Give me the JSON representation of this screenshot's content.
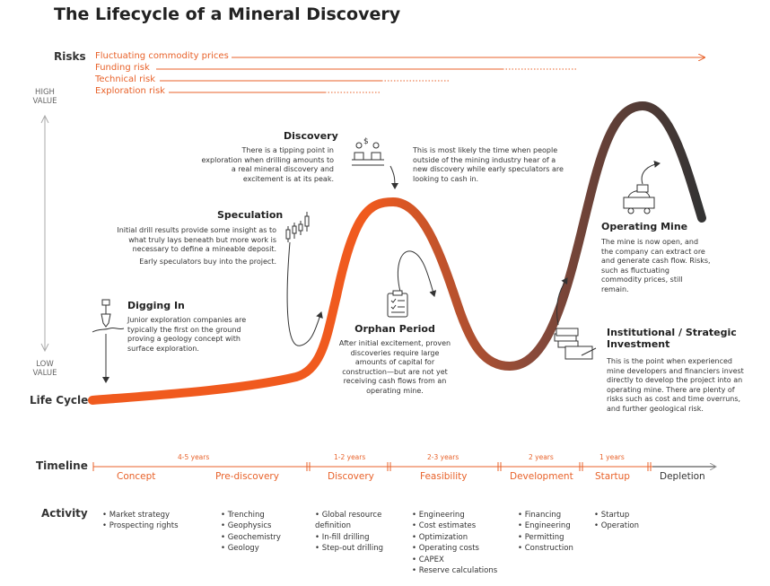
{
  "title": "The Lifecycle of a Mineral Discovery",
  "risks": {
    "heading": "Risks",
    "items": [
      {
        "label": "Fluctuating commodity prices"
      },
      {
        "label": "Funding risk"
      },
      {
        "label": "Technical risk"
      },
      {
        "label": "Exploration risk"
      }
    ]
  },
  "value_axis": {
    "high": "HIGH\nVALUE",
    "low": "LOW\nVALUE"
  },
  "lifecycle_label": "Life Cycle",
  "stages": {
    "discovery": {
      "heading": "Discovery",
      "text_left": "There is a tipping point in exploration when drilling amounts to a real mineral discovery and excitement is at its peak.",
      "text_right": "This is most likely the time when people outside of the mining industry hear of a new discovery while early speculators are looking to cash in."
    },
    "speculation": {
      "heading": "Speculation",
      "text": "Initial drill results provide some insight as to what truly lays beneath but more work is necessary to define a mineable deposit.",
      "text2": "Early speculators buy into the project."
    },
    "digging_in": {
      "heading": "Digging In",
      "text": "Junior exploration companies are typically the first on the ground proving a geology concept with surface exploration."
    },
    "orphan": {
      "heading": "Orphan Period",
      "text": "After initial excitement, proven discoveries require large amounts of capital for construction—but are not yet receiving cash flows from an operating mine."
    },
    "operating": {
      "heading": "Operating Mine",
      "text": "The mine is now open, and the company can extract ore and generate cash flow. Risks, such as fluctuating commodity prices, still remain."
    },
    "institutional": {
      "heading": "Institutional / Strategic Investment",
      "text": "This is the point when experienced mine developers and financiers invest directly to develop the project into an operating mine. There are plenty of risks such as cost and time overruns, and further geological risk."
    }
  },
  "timeline": {
    "heading": "Timeline",
    "year_spans": [
      "4-5 years",
      "1-2 years",
      "2-3 years",
      "2 years",
      "1 years"
    ],
    "phases": [
      "Concept",
      "Pre-discovery",
      "Discovery",
      "Feasibility",
      "Development",
      "Startup",
      "Depletion"
    ]
  },
  "activity": {
    "heading": "Activity",
    "columns": [
      [
        "Market strategy",
        "Prospecting rights"
      ],
      [
        "Trenching",
        "Geophysics",
        "Geochemistry",
        "Geology"
      ],
      [
        "Global resource definition",
        "In-fill drilling",
        "Step-out drilling"
      ],
      [
        "Engineering",
        "Cost estimates",
        "Optimization",
        "Operating costs",
        "CAPEX",
        "Reserve calculations"
      ],
      [
        "Financing",
        "Engineering",
        "Permitting",
        "Construction"
      ],
      [
        "Startup",
        "Operation"
      ]
    ]
  },
  "colors": {
    "accent": "#e8622a",
    "curve_start": "#f05a1e",
    "curve_end": "#333333",
    "text": "#333333"
  }
}
